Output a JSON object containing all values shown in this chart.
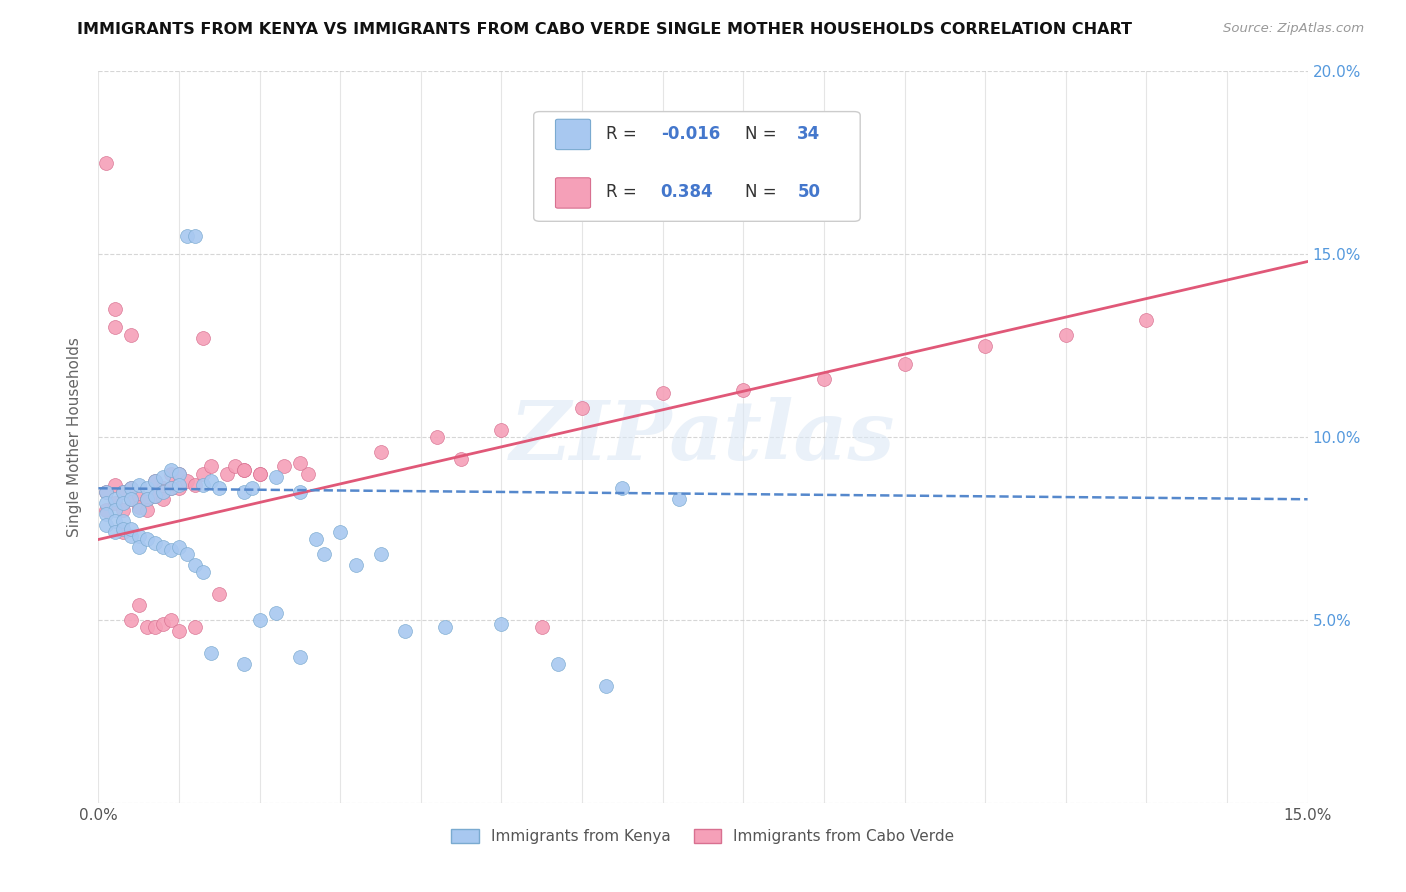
{
  "title": "IMMIGRANTS FROM KENYA VS IMMIGRANTS FROM CABO VERDE SINGLE MOTHER HOUSEHOLDS CORRELATION CHART",
  "source": "Source: ZipAtlas.com",
  "ylabel": "Single Mother Households",
  "xlim": [
    0.0,
    0.15
  ],
  "ylim": [
    0.0,
    0.2
  ],
  "kenya_color": "#a8c8f0",
  "kenya_edge_color": "#7aaad0",
  "cabo_verde_color": "#f5a0b8",
  "cabo_verde_edge_color": "#d87090",
  "kenya_line_color": "#5588cc",
  "cabo_verde_line_color": "#e05878",
  "kenya_R": -0.016,
  "kenya_N": 34,
  "cabo_verde_R": 0.384,
  "cabo_verde_N": 50,
  "kenya_line_x0": 0.0,
  "kenya_line_y0": 0.086,
  "kenya_line_x1": 0.15,
  "kenya_line_y1": 0.083,
  "cabo_line_x0": 0.0,
  "cabo_line_y0": 0.072,
  "cabo_line_x1": 0.15,
  "cabo_line_y1": 0.148,
  "kenya_scatter_x": [
    0.001,
    0.001,
    0.002,
    0.002,
    0.003,
    0.003,
    0.004,
    0.004,
    0.005,
    0.005,
    0.006,
    0.006,
    0.007,
    0.007,
    0.008,
    0.008,
    0.009,
    0.009,
    0.01,
    0.01,
    0.011,
    0.012,
    0.013,
    0.014,
    0.015,
    0.018,
    0.019,
    0.022,
    0.025,
    0.027,
    0.03,
    0.035,
    0.065,
    0.072
  ],
  "kenya_scatter_y": [
    0.085,
    0.082,
    0.083,
    0.08,
    0.085,
    0.082,
    0.086,
    0.083,
    0.087,
    0.08,
    0.086,
    0.083,
    0.088,
    0.084,
    0.089,
    0.085,
    0.091,
    0.086,
    0.09,
    0.087,
    0.155,
    0.155,
    0.087,
    0.088,
    0.086,
    0.085,
    0.086,
    0.089,
    0.085,
    0.072,
    0.074,
    0.068,
    0.086,
    0.083
  ],
  "kenya_scatter_x2": [
    0.001,
    0.001,
    0.002,
    0.002,
    0.003,
    0.003,
    0.004,
    0.004,
    0.005,
    0.005,
    0.006,
    0.007,
    0.008,
    0.009,
    0.01,
    0.011,
    0.012,
    0.013,
    0.014,
    0.018,
    0.02,
    0.022,
    0.025,
    0.028,
    0.032,
    0.038,
    0.043,
    0.05,
    0.057,
    0.063
  ],
  "kenya_scatter_y2": [
    0.079,
    0.076,
    0.077,
    0.074,
    0.077,
    0.075,
    0.073,
    0.075,
    0.073,
    0.07,
    0.072,
    0.071,
    0.07,
    0.069,
    0.07,
    0.068,
    0.065,
    0.063,
    0.041,
    0.038,
    0.05,
    0.052,
    0.04,
    0.068,
    0.065,
    0.047,
    0.048,
    0.049,
    0.038,
    0.032
  ],
  "cabo_scatter_x": [
    0.001,
    0.001,
    0.002,
    0.002,
    0.003,
    0.003,
    0.004,
    0.004,
    0.005,
    0.005,
    0.006,
    0.006,
    0.007,
    0.007,
    0.008,
    0.008,
    0.009,
    0.009,
    0.01,
    0.01,
    0.011,
    0.012,
    0.013,
    0.014,
    0.016,
    0.017,
    0.018,
    0.02,
    0.023,
    0.026,
    0.035,
    0.042,
    0.05,
    0.06,
    0.07,
    0.08,
    0.09,
    0.1,
    0.11,
    0.12,
    0.13
  ],
  "cabo_scatter_y": [
    0.08,
    0.085,
    0.082,
    0.087,
    0.08,
    0.085,
    0.083,
    0.086,
    0.084,
    0.081,
    0.083,
    0.08,
    0.088,
    0.084,
    0.086,
    0.083,
    0.09,
    0.086,
    0.086,
    0.09,
    0.088,
    0.087,
    0.09,
    0.092,
    0.09,
    0.092,
    0.091,
    0.09,
    0.092,
    0.09,
    0.096,
    0.1,
    0.102,
    0.108,
    0.112,
    0.113,
    0.116,
    0.12,
    0.125,
    0.128,
    0.132
  ],
  "cabo_scatter_x2": [
    0.001,
    0.002,
    0.002,
    0.003,
    0.004,
    0.004,
    0.005,
    0.006,
    0.007,
    0.008,
    0.009,
    0.01,
    0.012,
    0.013,
    0.015,
    0.018,
    0.02,
    0.025,
    0.045,
    0.055
  ],
  "cabo_scatter_y2": [
    0.175,
    0.135,
    0.13,
    0.074,
    0.05,
    0.128,
    0.054,
    0.048,
    0.048,
    0.049,
    0.05,
    0.047,
    0.048,
    0.127,
    0.057,
    0.091,
    0.09,
    0.093,
    0.094,
    0.048
  ]
}
